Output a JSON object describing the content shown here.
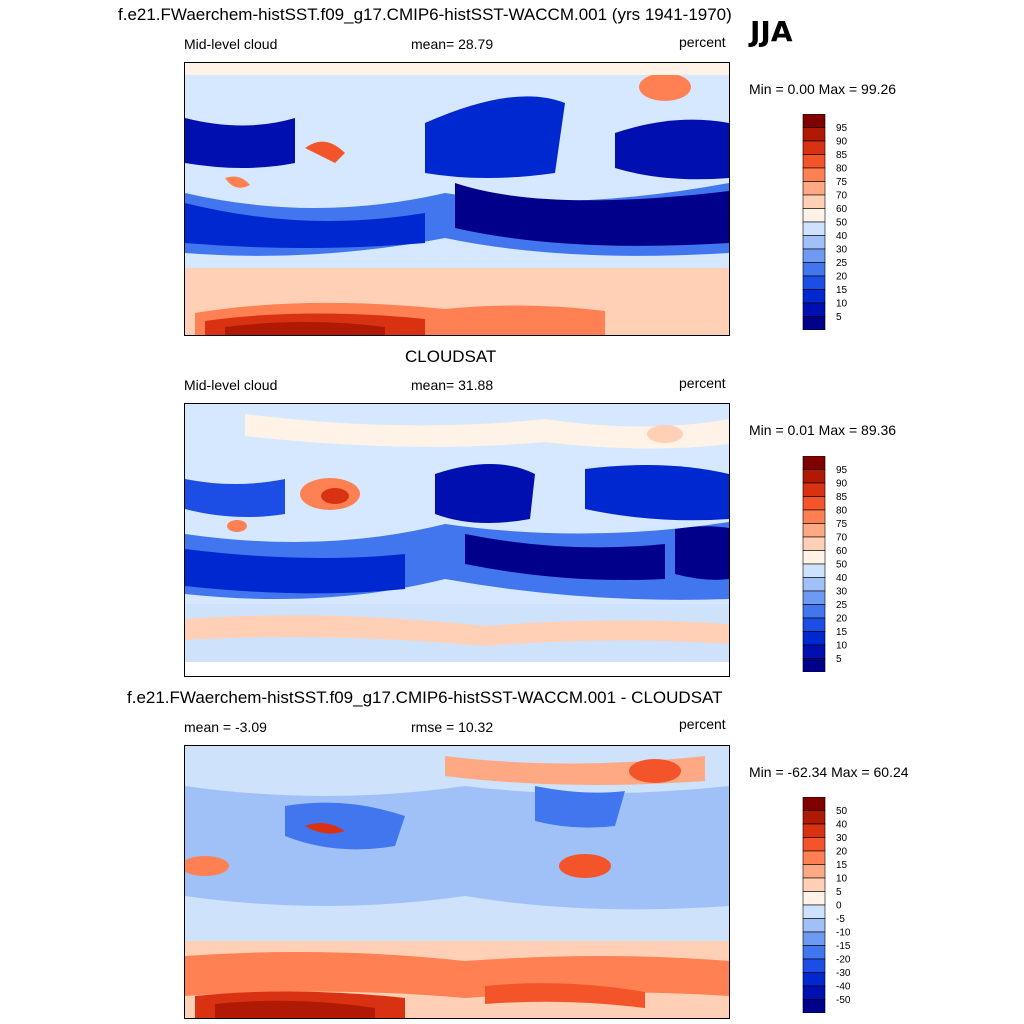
{
  "season": "JJA",
  "colors": {
    "abs_scale": [
      "#00008a",
      "#0010b0",
      "#0028d0",
      "#1c4ee6",
      "#4276ee",
      "#6f9af2",
      "#a0c0f8",
      "#cfe2fc",
      "#fff2e6",
      "#ffd0b5",
      "#ffa884",
      "#ff8052",
      "#f4542a",
      "#d83212",
      "#b01a04",
      "#800000"
    ],
    "diff_scale": [
      "#00008a",
      "#0010b0",
      "#0028d0",
      "#1c4ee6",
      "#4276ee",
      "#6f9af2",
      "#a0c0f8",
      "#cfe2fc",
      "#fff2e6",
      "#ffd0b5",
      "#ffa884",
      "#ff8052",
      "#f4542a",
      "#d83212",
      "#b01a04",
      "#800000"
    ]
  },
  "panels": [
    {
      "title": "f.e21.FWaerchem-histSST.f09_g17.CMIP6-histSST-WACCM.001 (yrs 1941-1970)",
      "left_label": "Mid-level cloud",
      "center_label": "mean=  28.79",
      "right_label": "percent",
      "minmax": "Min =   0.00 Max =  99.26",
      "ticks": [
        "95",
        "90",
        "85",
        "80",
        "75",
        "70",
        "60",
        "50",
        "40",
        "30",
        "25",
        "20",
        "15",
        "10",
        "5"
      ]
    },
    {
      "title": "CLOUDSAT",
      "left_label": "Mid-level cloud",
      "center_label": "mean=  31.88",
      "right_label": "percent",
      "minmax": "Min =   0.01 Max =  89.36",
      "ticks": [
        "95",
        "90",
        "85",
        "80",
        "75",
        "70",
        "60",
        "50",
        "40",
        "30",
        "25",
        "20",
        "15",
        "10",
        "5"
      ]
    },
    {
      "title": "f.e21.FWaerchem-histSST.f09_g17.CMIP6-histSST-WACCM.001 - CLOUDSAT",
      "left_label": "mean =  -3.09",
      "center_label": "rmse =  10.32",
      "right_label": "percent",
      "minmax": "Min = -62.34 Max =  60.24",
      "ticks": [
        "50",
        "40",
        "30",
        "20",
        "15",
        "10",
        "5",
        "0",
        "-5",
        "-10",
        "-15",
        "-20",
        "-30",
        "-40",
        "-50"
      ]
    }
  ]
}
